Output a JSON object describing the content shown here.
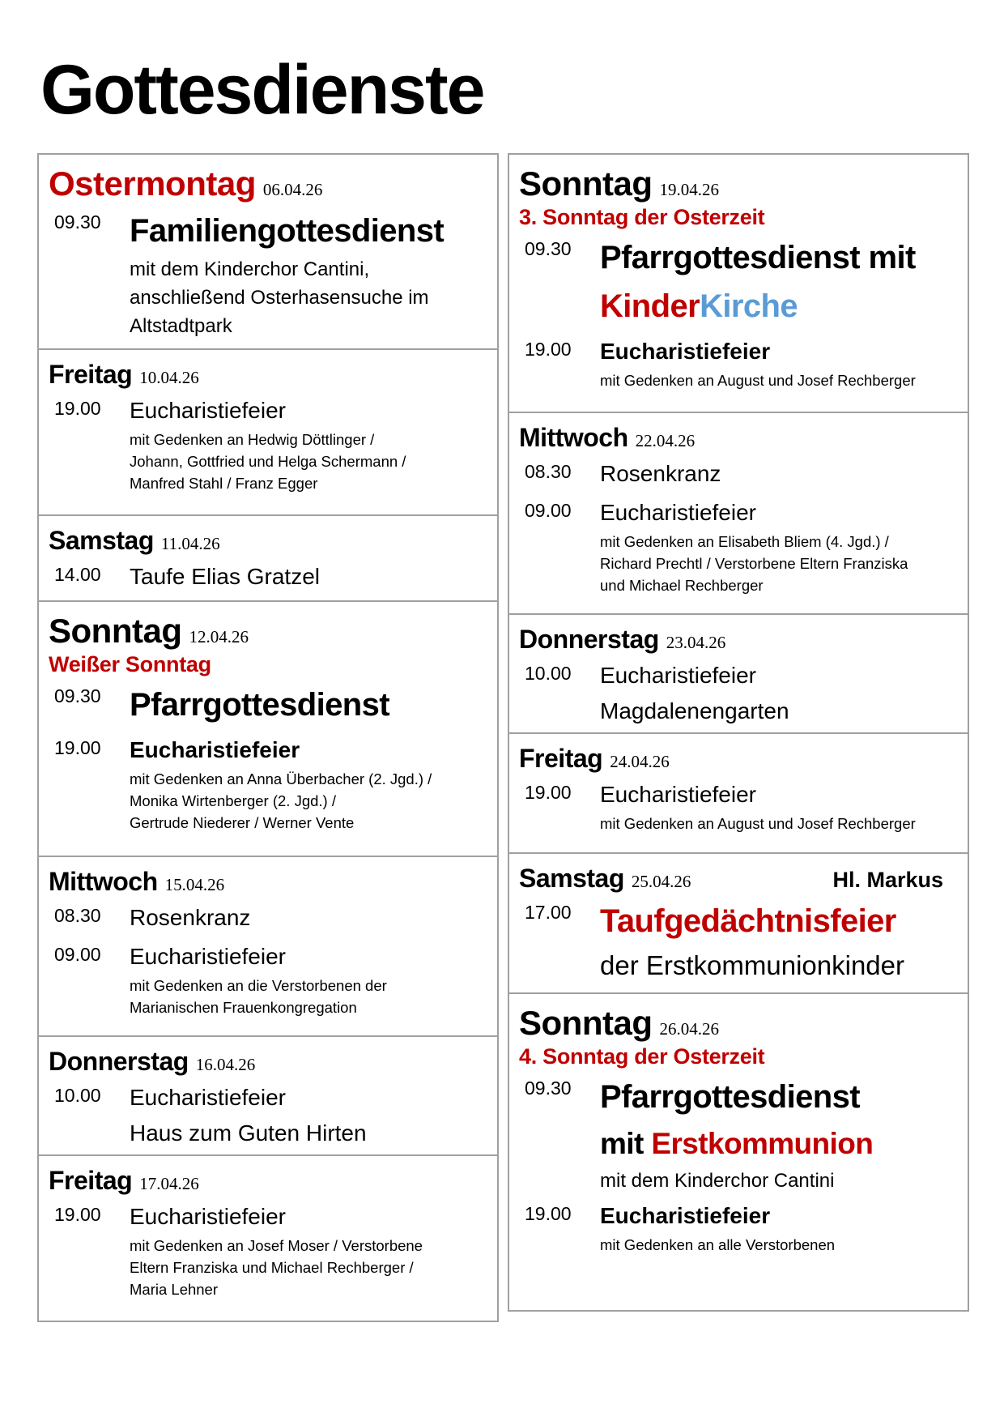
{
  "title": "Gottesdienste",
  "colors": {
    "red": "#c00000",
    "blue": "#5b9bd5",
    "border": "#a0a0a0"
  },
  "left": [
    {
      "day": "Ostermontag",
      "day_color": "#c00000",
      "size": "lg",
      "date": "06.04.26",
      "entries": [
        {
          "time": "09.30",
          "lines": [
            {
              "style": "hero",
              "parts": [
                {
                  "text": "Familiengottesdienst"
                }
              ]
            },
            {
              "style": "desc",
              "parts": [
                {
                  "text": "mit dem Kinderchor Cantini,"
                }
              ]
            },
            {
              "style": "desc",
              "parts": [
                {
                  "text": "anschließend Osterhasensuche im"
                }
              ]
            },
            {
              "style": "desc",
              "parts": [
                {
                  "text": "Altstadtpark"
                }
              ]
            }
          ]
        }
      ]
    },
    {
      "day": "Freitag",
      "size": "md",
      "date": "10.04.26",
      "entries": [
        {
          "time": "19.00",
          "lines": [
            {
              "style": "plain",
              "parts": [
                {
                  "text": "Eucharistiefeier"
                }
              ]
            },
            {
              "style": "detail",
              "parts": [
                {
                  "text": "mit Gedenken an Hedwig Döttlinger /"
                }
              ]
            },
            {
              "style": "detail",
              "parts": [
                {
                  "text": "Johann, Gottfried und Helga Schermann /"
                }
              ]
            },
            {
              "style": "detail",
              "parts": [
                {
                  "text": "Manfred Stahl / Franz Egger"
                }
              ]
            }
          ]
        }
      ]
    },
    {
      "day": "Samstag",
      "size": "md",
      "date": "11.04.26",
      "entries": [
        {
          "time": "14.00",
          "lines": [
            {
              "style": "plain",
              "parts": [
                {
                  "text": "Taufe Elias Gratzel"
                }
              ]
            }
          ]
        }
      ]
    },
    {
      "day": "Sonntag",
      "size": "lg",
      "date": "12.04.26",
      "subtitle": "Weißer Sonntag",
      "entries": [
        {
          "time": "09.30",
          "lines": [
            {
              "style": "hero",
              "parts": [
                {
                  "text": "Pfarrgottesdienst"
                }
              ]
            }
          ]
        },
        {
          "time": "19.00",
          "lines": [
            {
              "style": "bold",
              "parts": [
                {
                  "text": "Eucharistiefeier"
                }
              ]
            },
            {
              "style": "detail",
              "parts": [
                {
                  "text": "mit Gedenken an Anna Überbacher (2. Jgd.) /"
                }
              ]
            },
            {
              "style": "detail",
              "parts": [
                {
                  "text": "Monika Wirtenberger (2. Jgd.) /"
                }
              ]
            },
            {
              "style": "detail",
              "parts": [
                {
                  "text": "Gertrude Niederer / Werner Vente"
                }
              ]
            }
          ]
        }
      ]
    },
    {
      "day": "Mittwoch",
      "size": "md",
      "date": "15.04.26",
      "entries": [
        {
          "time": "08.30",
          "lines": [
            {
              "style": "plain",
              "parts": [
                {
                  "text": "Rosenkranz"
                }
              ]
            }
          ]
        },
        {
          "time": "09.00",
          "lines": [
            {
              "style": "plain",
              "parts": [
                {
                  "text": "Eucharistiefeier"
                }
              ]
            },
            {
              "style": "detail",
              "parts": [
                {
                  "text": "mit Gedenken an die Verstorbenen der"
                }
              ]
            },
            {
              "style": "detail",
              "parts": [
                {
                  "text": "Marianischen Frauenkongregation"
                }
              ]
            }
          ]
        }
      ]
    },
    {
      "day": "Donnerstag",
      "size": "md",
      "date": "16.04.26",
      "entries": [
        {
          "time": "10.00",
          "lines": [
            {
              "style": "plain",
              "parts": [
                {
                  "text": "Eucharistiefeier"
                }
              ]
            },
            {
              "style": "plain",
              "parts": [
                {
                  "text": "Haus zum Guten Hirten"
                }
              ]
            }
          ]
        }
      ]
    },
    {
      "day": "Freitag",
      "size": "md",
      "date": "17.04.26",
      "entries": [
        {
          "time": "19.00",
          "lines": [
            {
              "style": "plain",
              "parts": [
                {
                  "text": "Eucharistiefeier"
                }
              ]
            },
            {
              "style": "detail",
              "parts": [
                {
                  "text": "mit Gedenken an Josef Moser / Verstorbene"
                }
              ]
            },
            {
              "style": "detail",
              "parts": [
                {
                  "text": "Eltern Franziska und Michael Rechberger /"
                }
              ]
            },
            {
              "style": "detail",
              "parts": [
                {
                  "text": "Maria Lehner"
                }
              ]
            }
          ]
        }
      ]
    }
  ],
  "right": [
    {
      "day": "Sonntag",
      "size": "lg",
      "date": "19.04.26",
      "subtitle": "3. Sonntag der Osterzeit",
      "entries": [
        {
          "time": "09.30",
          "lines": [
            {
              "style": "hero",
              "parts": [
                {
                  "text": "Pfarrgottesdienst mit"
                }
              ]
            },
            {
              "style": "hero",
              "parts": [
                {
                  "text": "Kinder",
                  "color": "#c00000"
                },
                {
                  "text": "Kirche",
                  "color": "#5b9bd5"
                }
              ]
            }
          ]
        },
        {
          "time": "19.00",
          "lines": [
            {
              "style": "bold",
              "parts": [
                {
                  "text": "Eucharistiefeier"
                }
              ]
            },
            {
              "style": "detail",
              "parts": [
                {
                  "text": "mit Gedenken an August und Josef Rechberger"
                }
              ]
            }
          ]
        }
      ]
    },
    {
      "day": "Mittwoch",
      "size": "md",
      "date": "22.04.26",
      "entries": [
        {
          "time": "08.30",
          "lines": [
            {
              "style": "plain",
              "parts": [
                {
                  "text": "Rosenkranz"
                }
              ]
            }
          ]
        },
        {
          "time": "09.00",
          "lines": [
            {
              "style": "plain",
              "parts": [
                {
                  "text": "Eucharistiefeier"
                }
              ]
            },
            {
              "style": "detail",
              "parts": [
                {
                  "text": "mit Gedenken an Elisabeth Bliem (4. Jgd.) /"
                }
              ]
            },
            {
              "style": "detail",
              "parts": [
                {
                  "text": "Richard Prechtl / Verstorbene Eltern Franziska"
                }
              ]
            },
            {
              "style": "detail",
              "parts": [
                {
                  "text": "und Michael Rechberger"
                }
              ]
            }
          ]
        }
      ]
    },
    {
      "day": "Donnerstag",
      "size": "md",
      "date": "23.04.26",
      "entries": [
        {
          "time": "10.00",
          "lines": [
            {
              "style": "plain",
              "parts": [
                {
                  "text": "Eucharistiefeier"
                }
              ]
            },
            {
              "style": "plain",
              "parts": [
                {
                  "text": "Magdalenengarten"
                }
              ]
            }
          ]
        }
      ]
    },
    {
      "day": "Freitag",
      "size": "md",
      "date": "24.04.26",
      "entries": [
        {
          "time": "19.00",
          "lines": [
            {
              "style": "plain",
              "parts": [
                {
                  "text": "Eucharistiefeier"
                }
              ]
            },
            {
              "style": "detail",
              "parts": [
                {
                  "text": "mit Gedenken an August und Josef Rechberger"
                }
              ]
            }
          ]
        }
      ]
    },
    {
      "day": "Samstag",
      "size": "md",
      "date": "25.04.26",
      "note": "Hl. Markus",
      "entries": [
        {
          "time": "17.00",
          "lines": [
            {
              "style": "hero",
              "parts": [
                {
                  "text": "Taufgedächtnisfeier",
                  "color": "#c00000"
                }
              ]
            },
            {
              "style": "bigplain",
              "parts": [
                {
                  "text": "der Erstkommunionkinder"
                }
              ]
            }
          ]
        }
      ]
    },
    {
      "day": "Sonntag",
      "size": "lg",
      "date": "26.04.26",
      "subtitle": "4. Sonntag der Osterzeit",
      "entries": [
        {
          "time": "09.30",
          "lines": [
            {
              "style": "hero",
              "parts": [
                {
                  "text": "Pfarrgottesdienst"
                }
              ]
            },
            {
              "style": "hero2",
              "parts": [
                {
                  "text": "mit "
                },
                {
                  "text": "Erstkommunion",
                  "color": "#c00000"
                }
              ]
            },
            {
              "style": "desc",
              "parts": [
                {
                  "text": "mit dem Kinderchor Cantini"
                }
              ]
            }
          ]
        },
        {
          "time": "19.00",
          "lines": [
            {
              "style": "bold",
              "parts": [
                {
                  "text": "Eucharistiefeier"
                }
              ]
            },
            {
              "style": "detail",
              "parts": [
                {
                  "text": "mit Gedenken an alle Verstorbenen"
                }
              ]
            }
          ]
        }
      ]
    }
  ]
}
